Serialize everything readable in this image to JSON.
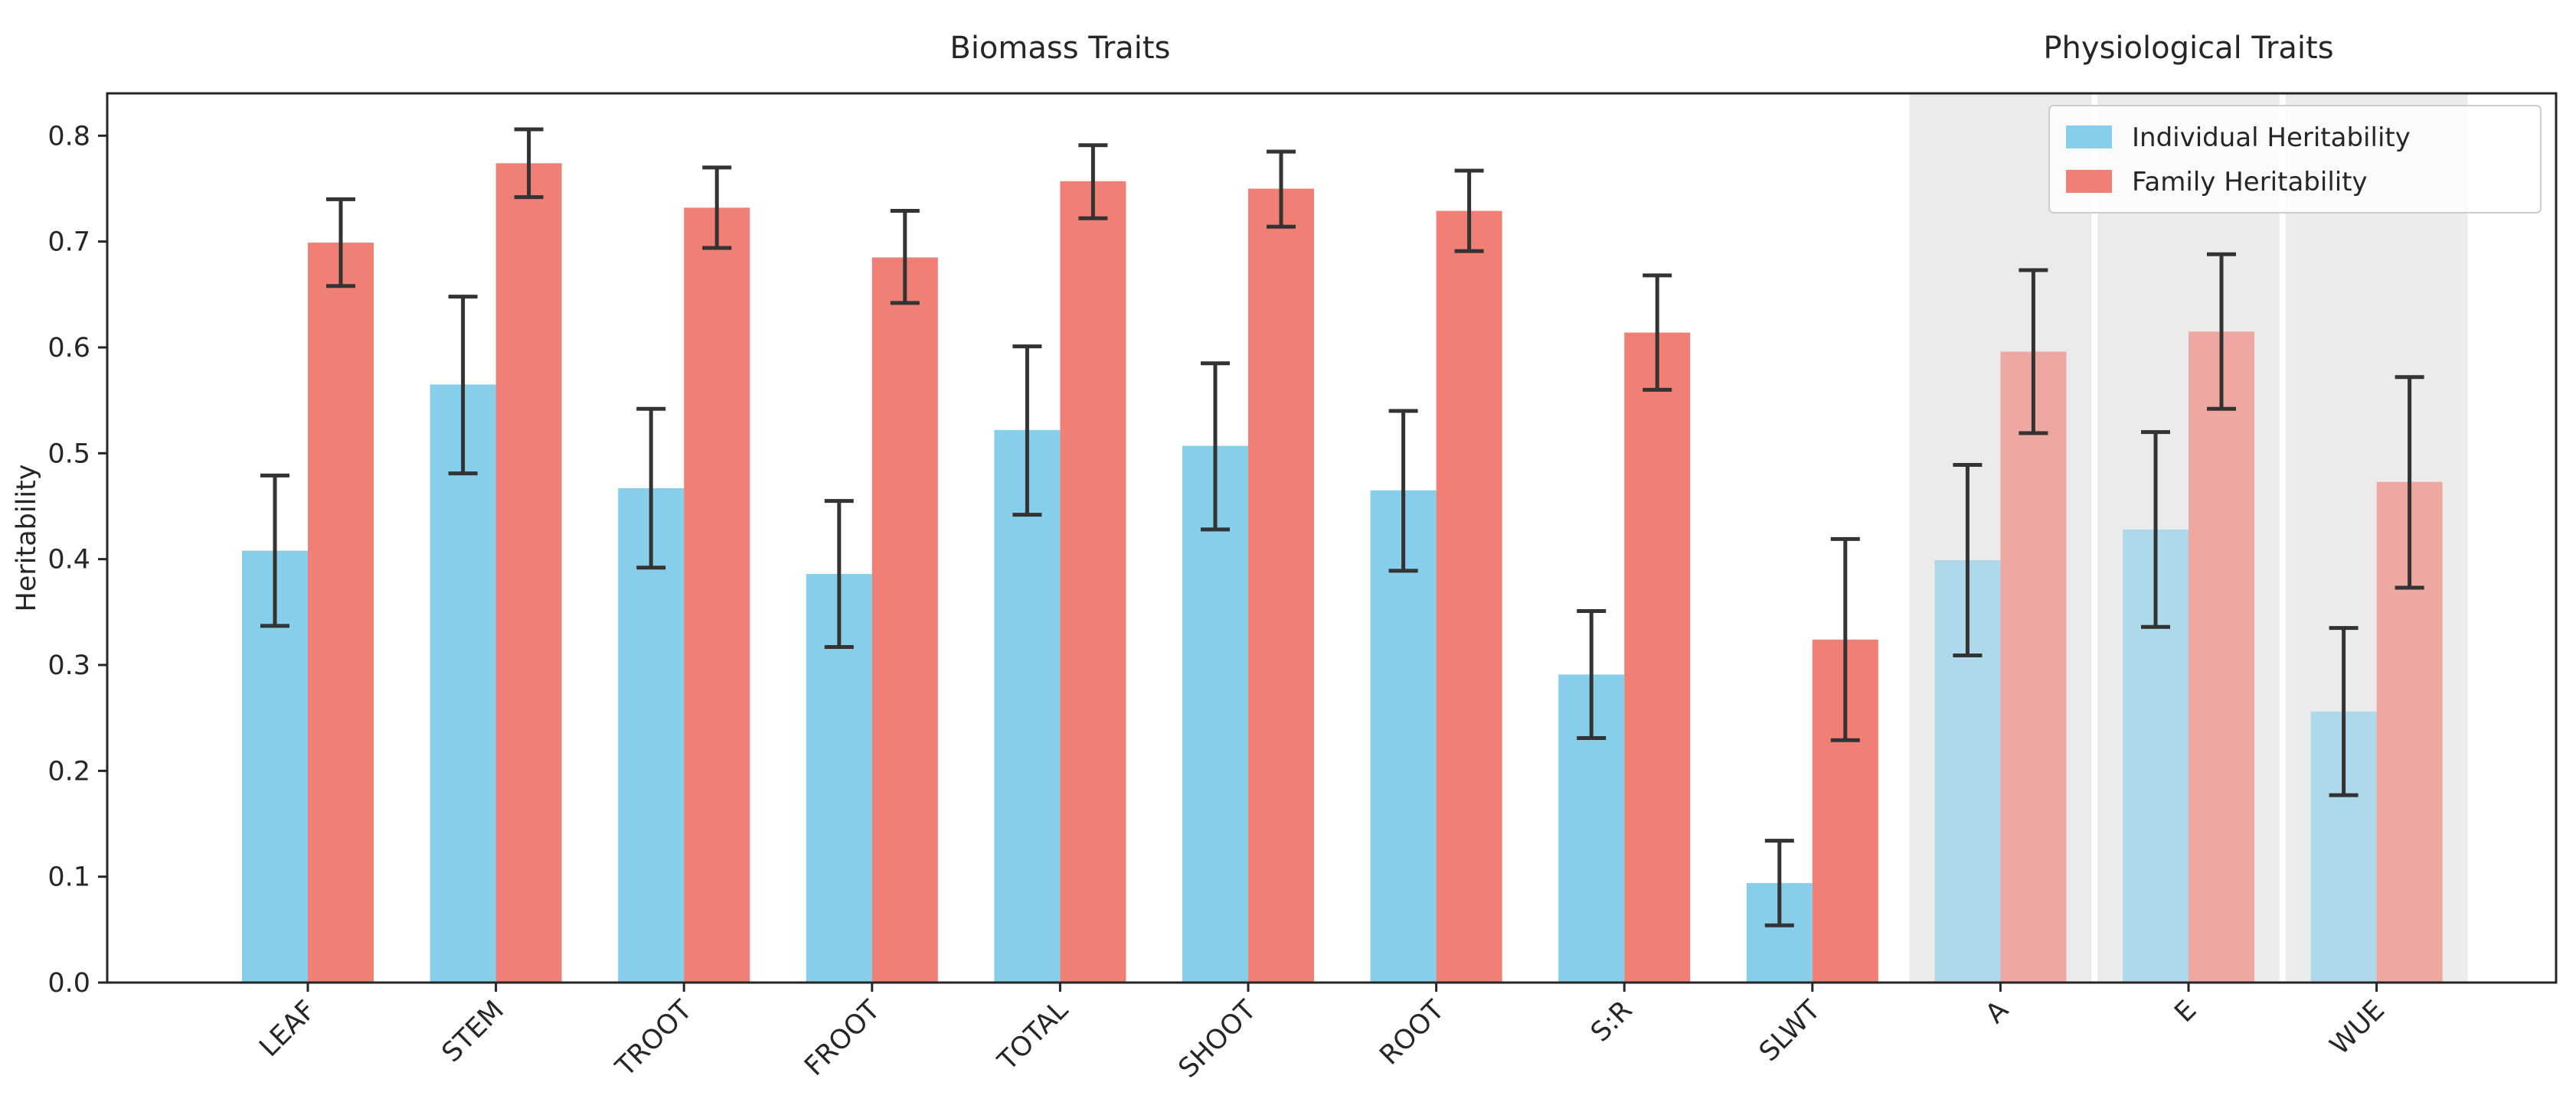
{
  "chart_data": {
    "type": "bar",
    "title": "",
    "xlabel": "",
    "ylabel": "Heritability",
    "ylim": [
      0,
      0.84
    ],
    "yticks": [
      "0.0",
      "0.1",
      "0.2",
      "0.3",
      "0.4",
      "0.5",
      "0.6",
      "0.7",
      "0.8"
    ],
    "categories": [
      "LEAF",
      "STEM",
      "TROOT",
      "FROOT",
      "TOTAL",
      "SHOOT",
      "ROOT",
      "S:R",
      "SLWT",
      "A",
      "E",
      "WUE"
    ],
    "series": [
      {
        "name": "Individual Heritability",
        "color": "#87ceeb",
        "values": [
          0.408,
          0.565,
          0.467,
          0.386,
          0.522,
          0.507,
          0.465,
          0.291,
          0.094,
          0.399,
          0.428,
          0.256
        ],
        "err_low": [
          0.337,
          0.481,
          0.392,
          0.317,
          0.442,
          0.428,
          0.389,
          0.231,
          0.054,
          0.309,
          0.336,
          0.177
        ],
        "err_high": [
          0.479,
          0.648,
          0.542,
          0.455,
          0.601,
          0.585,
          0.54,
          0.351,
          0.134,
          0.489,
          0.52,
          0.335
        ]
      },
      {
        "name": "Family Heritability",
        "color": "#f08075",
        "values": [
          0.699,
          0.774,
          0.732,
          0.685,
          0.757,
          0.75,
          0.729,
          0.614,
          0.324,
          0.596,
          0.615,
          0.473
        ],
        "err_low": [
          0.658,
          0.742,
          0.694,
          0.642,
          0.722,
          0.714,
          0.691,
          0.56,
          0.229,
          0.519,
          0.542,
          0.373
        ],
        "err_high": [
          0.74,
          0.806,
          0.77,
          0.729,
          0.791,
          0.785,
          0.767,
          0.668,
          0.419,
          0.673,
          0.688,
          0.572
        ]
      }
    ],
    "faded_categories": [
      "A",
      "E",
      "WUE"
    ],
    "section_labels": [
      {
        "text": "Biomass Traits",
        "categories": [
          "LEAF",
          "STEM",
          "TROOT",
          "FROOT",
          "TOTAL",
          "SHOOT",
          "ROOT",
          "S:R",
          "SLWT"
        ]
      },
      {
        "text": "Physiological Traits",
        "categories": [
          "A",
          "E",
          "WUE"
        ]
      }
    ],
    "shaded_region_color": "#ebebeb",
    "legend_position": "top-right",
    "grid": false
  }
}
